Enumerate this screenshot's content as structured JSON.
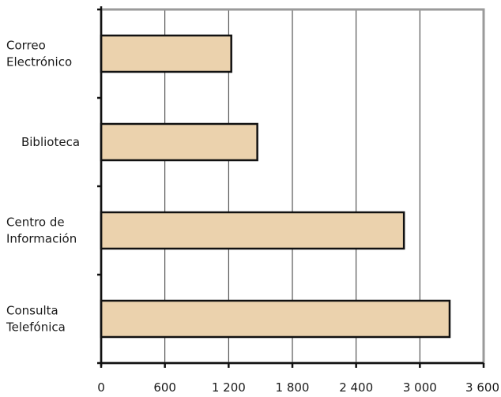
{
  "chart_data": {
    "type": "bar",
    "orientation": "horizontal",
    "title": "",
    "xlabel": "",
    "ylabel": "",
    "categories": [
      [
        "Correo",
        "Electrónico"
      ],
      [
        "Biblioteca"
      ],
      [
        "Centro de",
        "Información"
      ],
      [
        "Consulta",
        "Telefónica"
      ]
    ],
    "values": [
      1225,
      1470,
      2850,
      3280
    ],
    "xlim": [
      0,
      3600
    ],
    "xticks": [
      0,
      600,
      1200,
      1800,
      2400,
      3000,
      3600
    ],
    "xtick_labels": [
      "0",
      "600",
      "1 200",
      "1 800",
      "2 400",
      "3 000",
      "3 600"
    ],
    "grid": "vertical",
    "legend": "none",
    "colors": {
      "bar_fill": "#ebd2ad",
      "bar_stroke": "#111111",
      "grid": "#333333",
      "frame": "#9a9a9a",
      "axis": "#111111"
    }
  }
}
